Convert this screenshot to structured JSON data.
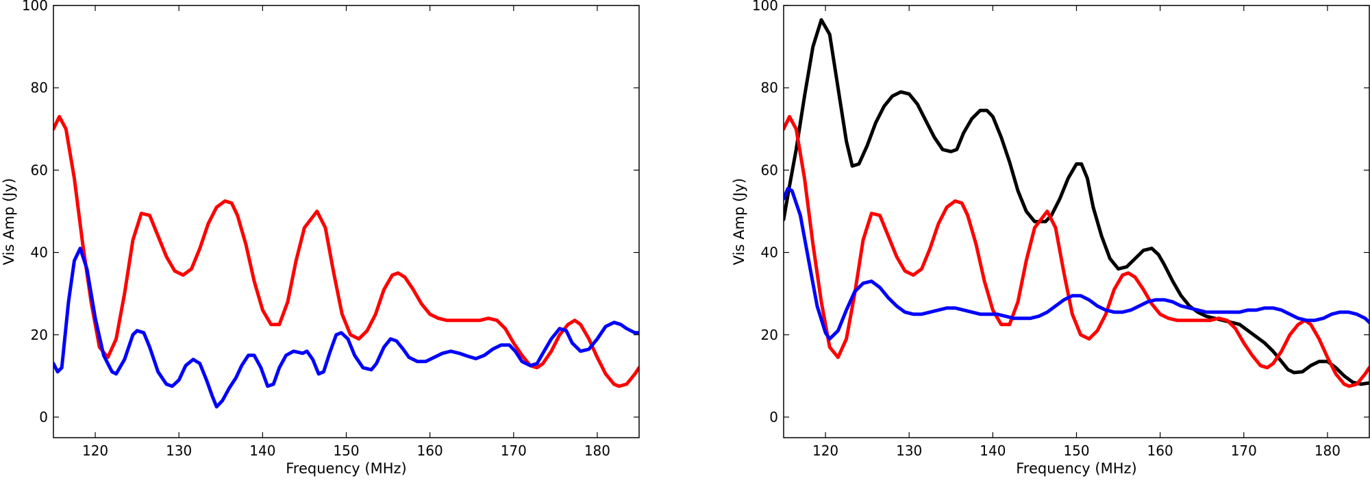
{
  "chart_data": [
    {
      "type": "line",
      "xlabel": "Frequency (MHz)",
      "ylabel": "Vis Amp (Jy)",
      "xlim": [
        115,
        185
      ],
      "ylim": [
        -5,
        100
      ],
      "xticks": [
        120,
        130,
        140,
        150,
        160,
        170,
        180
      ],
      "yticks": [
        0,
        20,
        40,
        60,
        80,
        100
      ],
      "grid": false,
      "series": [
        {
          "color": "#ff0000",
          "x": [
            115,
            115.7,
            116.5,
            117.5,
            118.5,
            119.5,
            120.5,
            121.5,
            122.5,
            123.5,
            124.5,
            125.5,
            126.5,
            127.5,
            128.5,
            129.5,
            130.5,
            131.5,
            132.5,
            133.5,
            134.5,
            135.5,
            136.3,
            137,
            138,
            139,
            140,
            141,
            142,
            143,
            144,
            145,
            146.5,
            147.5,
            148.5,
            149.5,
            150.5,
            151.5,
            152.5,
            153.5,
            154.5,
            155.5,
            156.2,
            157,
            158,
            159,
            160,
            161,
            162,
            163,
            164,
            165,
            166,
            167,
            168,
            169,
            170,
            171,
            172,
            172.8,
            173.5,
            174.5,
            175.5,
            176.5,
            177.3,
            178,
            179,
            180,
            181,
            182,
            182.6,
            183.5,
            184.5,
            185
          ],
          "values": [
            70,
            73,
            70,
            58,
            42,
            28,
            17,
            14.5,
            19,
            30,
            43,
            49.5,
            49,
            44,
            39,
            35.5,
            34.5,
            36,
            41,
            47,
            51,
            52.5,
            52,
            49,
            42,
            33,
            26,
            22.5,
            22.5,
            28,
            38,
            46,
            50,
            46,
            35,
            25,
            20,
            19,
            21,
            25,
            31,
            34.5,
            35,
            34,
            31,
            27.5,
            25,
            24,
            23.5,
            23.5,
            23.5,
            23.5,
            23.5,
            24,
            23.5,
            21.5,
            18,
            15,
            12.5,
            12,
            13,
            16,
            20,
            22.5,
            23.5,
            22.5,
            19,
            14.5,
            10.5,
            8,
            7.5,
            8,
            10.5,
            12
          ]
        },
        {
          "color": "#0000ff",
          "x": [
            115,
            115.5,
            116,
            116.8,
            117.5,
            118.2,
            119,
            120,
            121,
            122,
            122.5,
            123.5,
            124.5,
            125,
            125.8,
            126.5,
            127.5,
            128.5,
            129.2,
            130,
            130.8,
            131.7,
            132.5,
            133.3,
            134,
            134.5,
            135.2,
            136,
            136.8,
            137.5,
            138.3,
            139,
            139.8,
            140.6,
            141.3,
            142,
            142.8,
            143.7,
            144.8,
            145.3,
            146,
            146.7,
            147.3,
            148,
            148.8,
            149.4,
            150.2,
            151,
            152,
            153,
            153.6,
            154.5,
            155.3,
            156,
            156.8,
            157.5,
            158.5,
            159.5,
            160.5,
            161.5,
            162.5,
            163.5,
            164.5,
            165.5,
            166.5,
            167.5,
            168.5,
            169.5,
            170.2,
            171,
            172,
            172.8,
            173.5,
            174.5,
            175.5,
            176.3,
            177,
            178,
            179,
            180,
            181,
            182,
            182.8,
            183.5,
            184.5,
            185
          ],
          "values": [
            13,
            11,
            12,
            28,
            38,
            41,
            36,
            24,
            15,
            11,
            10.5,
            14,
            20,
            21,
            20.5,
            17,
            11,
            8,
            7.5,
            9,
            12.5,
            14,
            13,
            9,
            5,
            2.5,
            4,
            7,
            9.5,
            12.5,
            15,
            15,
            12,
            7.5,
            8,
            12,
            15,
            16,
            15.5,
            16,
            14,
            10.5,
            11,
            15.5,
            20,
            20.5,
            19,
            15,
            12,
            11.5,
            13,
            17,
            19,
            18.5,
            16.5,
            14.5,
            13.5,
            13.5,
            14.5,
            15.5,
            16,
            15.5,
            14.8,
            14.2,
            15,
            16.5,
            17.5,
            17.5,
            16,
            13.5,
            12.5,
            13,
            15.5,
            19,
            21.5,
            21,
            18,
            16,
            16.5,
            19,
            22,
            23,
            22.5,
            21.5,
            20.5,
            20.5
          ]
        }
      ]
    },
    {
      "type": "line",
      "xlabel": "Frequency (MHz)",
      "ylabel": "Vis Amp (Jy)",
      "xlim": [
        115,
        185
      ],
      "ylim": [
        -5,
        100
      ],
      "xticks": [
        120,
        130,
        140,
        150,
        160,
        170,
        180
      ],
      "yticks": [
        0,
        20,
        40,
        60,
        80,
        100
      ],
      "grid": false,
      "series": [
        {
          "color": "#000000",
          "x": [
            115,
            115.6,
            116.5,
            117.5,
            118.5,
            119.5,
            120.5,
            121.5,
            122.5,
            123.2,
            124,
            125,
            126,
            127,
            128,
            129,
            130,
            131,
            132,
            133,
            134,
            135,
            135.7,
            136.5,
            137.5,
            138.5,
            139.3,
            140,
            141,
            142,
            143,
            144,
            145,
            146.3,
            147,
            148,
            149,
            150,
            150.6,
            151.3,
            152,
            153,
            154,
            155,
            156,
            157,
            158,
            159,
            159.8,
            160.5,
            161.5,
            162.5,
            163.5,
            164.5,
            165.5,
            166.5,
            167.5,
            168.5,
            169.5,
            170.5,
            171.5,
            172.5,
            173.5,
            174.5,
            175.3,
            176,
            177,
            178,
            179,
            180,
            181,
            182,
            183,
            184,
            185
          ],
          "values": [
            48,
            55,
            65,
            78,
            90,
            96.5,
            93,
            80,
            67,
            61,
            61.5,
            66,
            71.5,
            75.5,
            78,
            79,
            78.5,
            76,
            72,
            68,
            65,
            64.5,
            65,
            69,
            72.5,
            74.5,
            74.5,
            73,
            68,
            62,
            55,
            50,
            47.5,
            47.5,
            49,
            53,
            58,
            61.5,
            61.5,
            58,
            51,
            44,
            38.5,
            36,
            36.5,
            38.5,
            40.5,
            41,
            39.5,
            37,
            33,
            29.5,
            27,
            25.5,
            24.5,
            24,
            23.5,
            23,
            22.5,
            21,
            19.5,
            18,
            16,
            13.5,
            11.5,
            10.8,
            11,
            12.5,
            13.5,
            13.5,
            12,
            10,
            8.5,
            8,
            8.3
          ]
        },
        {
          "color": "#ff0000",
          "x": [
            115,
            115.7,
            116.5,
            117.5,
            118.5,
            119.5,
            120.5,
            121.5,
            122.5,
            123.5,
            124.5,
            125.5,
            126.5,
            127.5,
            128.5,
            129.5,
            130.5,
            131.5,
            132.5,
            133.5,
            134.5,
            135.5,
            136.3,
            137,
            138,
            139,
            140,
            141,
            142,
            143,
            144,
            145,
            146.5,
            147.5,
            148.5,
            149.5,
            150.5,
            151.5,
            152.5,
            153.5,
            154.5,
            155.5,
            156.2,
            157,
            158,
            159,
            160,
            161,
            162,
            163,
            164,
            165,
            166,
            167,
            168,
            169,
            170,
            171,
            172,
            172.8,
            173.5,
            174.5,
            175.5,
            176.5,
            177.3,
            178,
            179,
            180,
            181,
            182,
            182.6,
            183.5,
            184.5,
            185
          ],
          "values": [
            70,
            73,
            70,
            58,
            42,
            28,
            17,
            14.5,
            19,
            30,
            43,
            49.5,
            49,
            44,
            39,
            35.5,
            34.5,
            36,
            41,
            47,
            51,
            52.5,
            52,
            49,
            42,
            33,
            26,
            22.5,
            22.5,
            28,
            38,
            46,
            50,
            46,
            35,
            25,
            20,
            19,
            21,
            25,
            31,
            34.5,
            35,
            34,
            31,
            27.5,
            25,
            24,
            23.5,
            23.5,
            23.5,
            23.5,
            23.5,
            24,
            23.5,
            21.5,
            18,
            15,
            12.5,
            12,
            13,
            16,
            20,
            22.5,
            23.5,
            22.5,
            19,
            14.5,
            10.5,
            8,
            7.5,
            8,
            10.5,
            12
          ]
        },
        {
          "color": "#0000ff",
          "x": [
            115,
            115.5,
            116,
            117,
            118,
            119,
            120,
            120.5,
            121.5,
            122.5,
            123.5,
            124.5,
            125.5,
            126.5,
            127.5,
            128.5,
            129.5,
            130.5,
            131.5,
            132.5,
            133.5,
            134.5,
            135.5,
            136.5,
            137.5,
            138.5,
            139.5,
            140.5,
            141.5,
            142.5,
            143.5,
            144.5,
            145.5,
            146.5,
            147.5,
            148.5,
            149.5,
            150.5,
            151.5,
            152.5,
            153.5,
            154.5,
            155.5,
            156.5,
            157.5,
            158.5,
            159.5,
            160.5,
            161.5,
            162.5,
            163.5,
            164.5,
            165.5,
            166.5,
            167.5,
            168.5,
            169.5,
            170.5,
            171.5,
            172.5,
            173.5,
            174.5,
            175.5,
            176.5,
            177.5,
            178.5,
            179.5,
            180.5,
            181.5,
            182.5,
            183.5,
            184.5,
            185
          ],
          "values": [
            53,
            55.5,
            55,
            49,
            38,
            27,
            20.5,
            19,
            21,
            26,
            30.5,
            32.5,
            33,
            31.5,
            29,
            27,
            25.5,
            25,
            25,
            25.5,
            26,
            26.5,
            26.5,
            26,
            25.5,
            25,
            25,
            25,
            24.5,
            24,
            24,
            24,
            24.5,
            25.5,
            27,
            28.5,
            29.5,
            29.5,
            28.5,
            27,
            26,
            25.5,
            25.5,
            26,
            27,
            28,
            28.5,
            28.5,
            28,
            27,
            26.5,
            26,
            25.5,
            25.5,
            25.5,
            25.5,
            25.5,
            26,
            26,
            26.5,
            26.5,
            26,
            25,
            24,
            23.5,
            23.5,
            24,
            25,
            25.5,
            25.5,
            25,
            24,
            23
          ]
        }
      ]
    }
  ]
}
